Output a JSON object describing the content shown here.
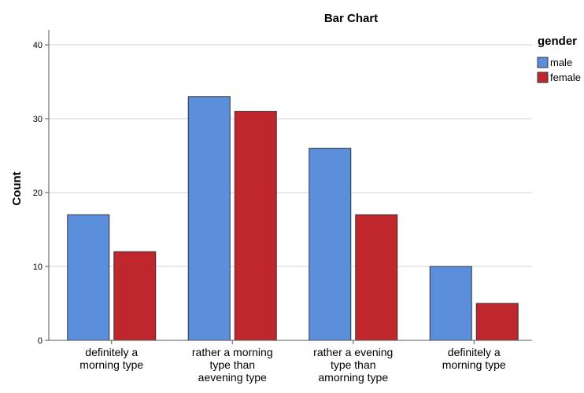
{
  "chart_data": {
    "type": "bar",
    "title": "Bar Chart",
    "xlabel": "",
    "ylabel": "Count",
    "ylim": [
      0,
      40
    ],
    "yticks": [
      0,
      10,
      20,
      30,
      40
    ],
    "grid": true,
    "legend_title": "gender",
    "legend_position": "top-right",
    "categories": [
      [
        "definitely a",
        "morning type"
      ],
      [
        "rather a morning",
        "type than",
        "aevening type"
      ],
      [
        "rather a evening",
        "type than",
        "amorning type"
      ],
      [
        "definitely a",
        "morning type"
      ]
    ],
    "series": [
      {
        "name": "male",
        "color": "#5b8fdc",
        "values": [
          17,
          33,
          26,
          10
        ]
      },
      {
        "name": "female",
        "color": "#c0272d",
        "values": [
          12,
          31,
          17,
          5
        ]
      }
    ]
  }
}
